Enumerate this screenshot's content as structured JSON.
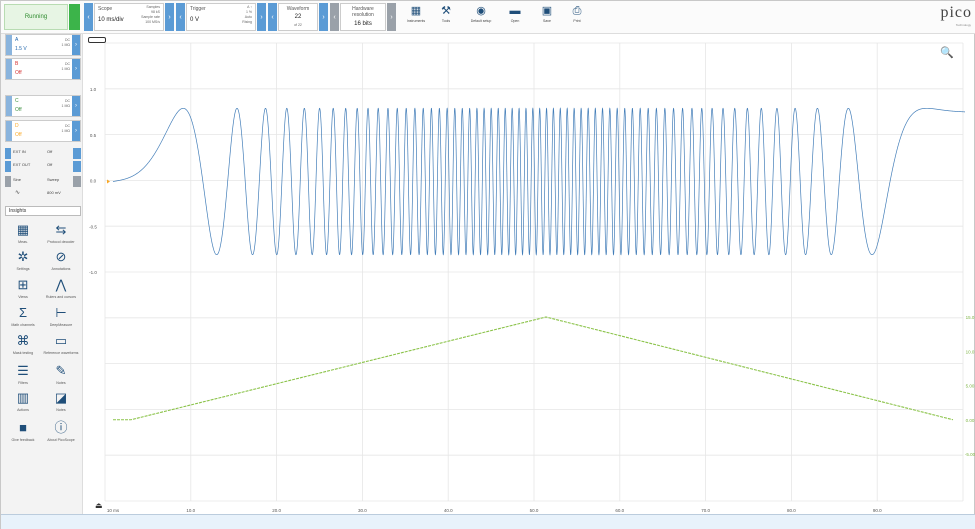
{
  "status": {
    "running_label": "Running"
  },
  "toolbar": {
    "scope": {
      "label": "Scope",
      "timebase": "10 ms/div",
      "side_top": "Samples",
      "side_mid": "98 kS",
      "side_bot": "Sample rate",
      "side_bot2": "100 MS/s"
    },
    "trigger": {
      "label": "Trigger",
      "value": "0 V",
      "side_top": "A ↑",
      "side_mid": "1 %",
      "side_bot": "Auto",
      "side_bot2": "Rising"
    },
    "waveform": {
      "label": "Waveform",
      "value": "22",
      "sub": "of 22"
    },
    "resolution": {
      "label": "Hardware resolution",
      "value": "16 bits"
    },
    "tools": [
      {
        "icon": "channels-icon",
        "glyph": "▦",
        "label": "Instruments"
      },
      {
        "icon": "wrench-icon",
        "glyph": "⚒",
        "label": "Tools"
      },
      {
        "icon": "target-icon",
        "glyph": "◉",
        "label": "Default setup"
      },
      {
        "icon": "folder-icon",
        "glyph": "▬",
        "label": "Open"
      },
      {
        "icon": "save-icon",
        "glyph": "▣",
        "label": "Save"
      },
      {
        "icon": "print-icon",
        "glyph": "⎙",
        "label": "Print"
      }
    ]
  },
  "logo": {
    "text": "pico",
    "sub": "Technology"
  },
  "channels": [
    {
      "name": "A",
      "value": "1.5 V",
      "range1": "DC",
      "range2": "1 MΩ",
      "color": "#2166ac"
    },
    {
      "name": "B",
      "value": "Off",
      "range1": "DC",
      "range2": "1 MΩ",
      "color": "#d32f2f"
    },
    {
      "name": "C",
      "value": "Off",
      "range1": "DC",
      "range2": "1 MΩ",
      "color": "#388e3c"
    },
    {
      "name": "D",
      "value": "Off",
      "range1": "DC",
      "range2": "1 MΩ",
      "color": "#f9a825"
    }
  ],
  "small_rows": [
    {
      "b": "EXT IN",
      "c": "Off"
    },
    {
      "b": "EXT OUT",
      "c": "Off"
    },
    {
      "b": "Sine",
      "c": "Sweep"
    },
    {
      "b": "",
      "c": "800 mV"
    }
  ],
  "insights_label": "Insights",
  "tiles": [
    {
      "icon": "measure-icon",
      "glyph": "▦",
      "label": "Meas."
    },
    {
      "icon": "protocol-icon",
      "glyph": "⇆",
      "label": "Protocol decoder"
    },
    {
      "icon": "settings-icon",
      "glyph": "✲",
      "label": "Settings"
    },
    {
      "icon": "annotations-icon",
      "glyph": "⊘",
      "label": "Annotations"
    },
    {
      "icon": "views-icon",
      "glyph": "⊞",
      "label": "Views"
    },
    {
      "icon": "rulers-icon",
      "glyph": "⋀",
      "label": "Rulers and cursors"
    },
    {
      "icon": "math-icon",
      "glyph": "Σ",
      "label": "Math channels"
    },
    {
      "icon": "deep-measure-icon",
      "glyph": "⊢",
      "label": "DeepMeasure"
    },
    {
      "icon": "mask-icon",
      "glyph": "⌘",
      "label": "Mask testing"
    },
    {
      "icon": "reference-icon",
      "glyph": "▭",
      "label": "Reference waveforms"
    },
    {
      "icon": "filters-icon",
      "glyph": "☰",
      "label": "Filters"
    },
    {
      "icon": "notes-icon",
      "glyph": "✎",
      "label": "Notes"
    },
    {
      "icon": "actions-icon",
      "glyph": "▥",
      "label": "Actions"
    },
    {
      "icon": "notes2-icon",
      "glyph": "◪",
      "label": "Notes"
    },
    {
      "icon": "feedback-icon",
      "glyph": "■",
      "label": "Give feedback"
    },
    {
      "icon": "about-icon",
      "glyph": "ⓘ",
      "label": "About PicoScope"
    }
  ],
  "colors": {
    "accent": "#5b9bd5",
    "wave": "#2166ac",
    "ramp": "#8bc34a",
    "run": "#3cb44a"
  },
  "chart_data": {
    "type": "line",
    "x_ticks": [
      "10 ms",
      "10.0",
      "20.0",
      "30.0",
      "40.0",
      "50.0",
      "60.0",
      "70.0",
      "80.0",
      "90.0"
    ],
    "left_axis_ticks": [
      "1.0",
      "0.5",
      "0.0",
      "-0.5",
      "-1.0"
    ],
    "right_axis_ticks": [
      "15.0",
      "10.0",
      "5.00",
      "0.00",
      "-5.00"
    ],
    "series": [
      {
        "type": "chirp",
        "color": "#2166ac",
        "amplitude": 0.8,
        "description_ylim": [
          -1.0,
          1.0
        ]
      },
      {
        "type": "ramp",
        "color": "#8bc34a",
        "points": [
          [
            0,
            0.0
          ],
          [
            51,
            15.0
          ],
          [
            100,
            0.0
          ]
        ]
      }
    ],
    "grid": true
  }
}
